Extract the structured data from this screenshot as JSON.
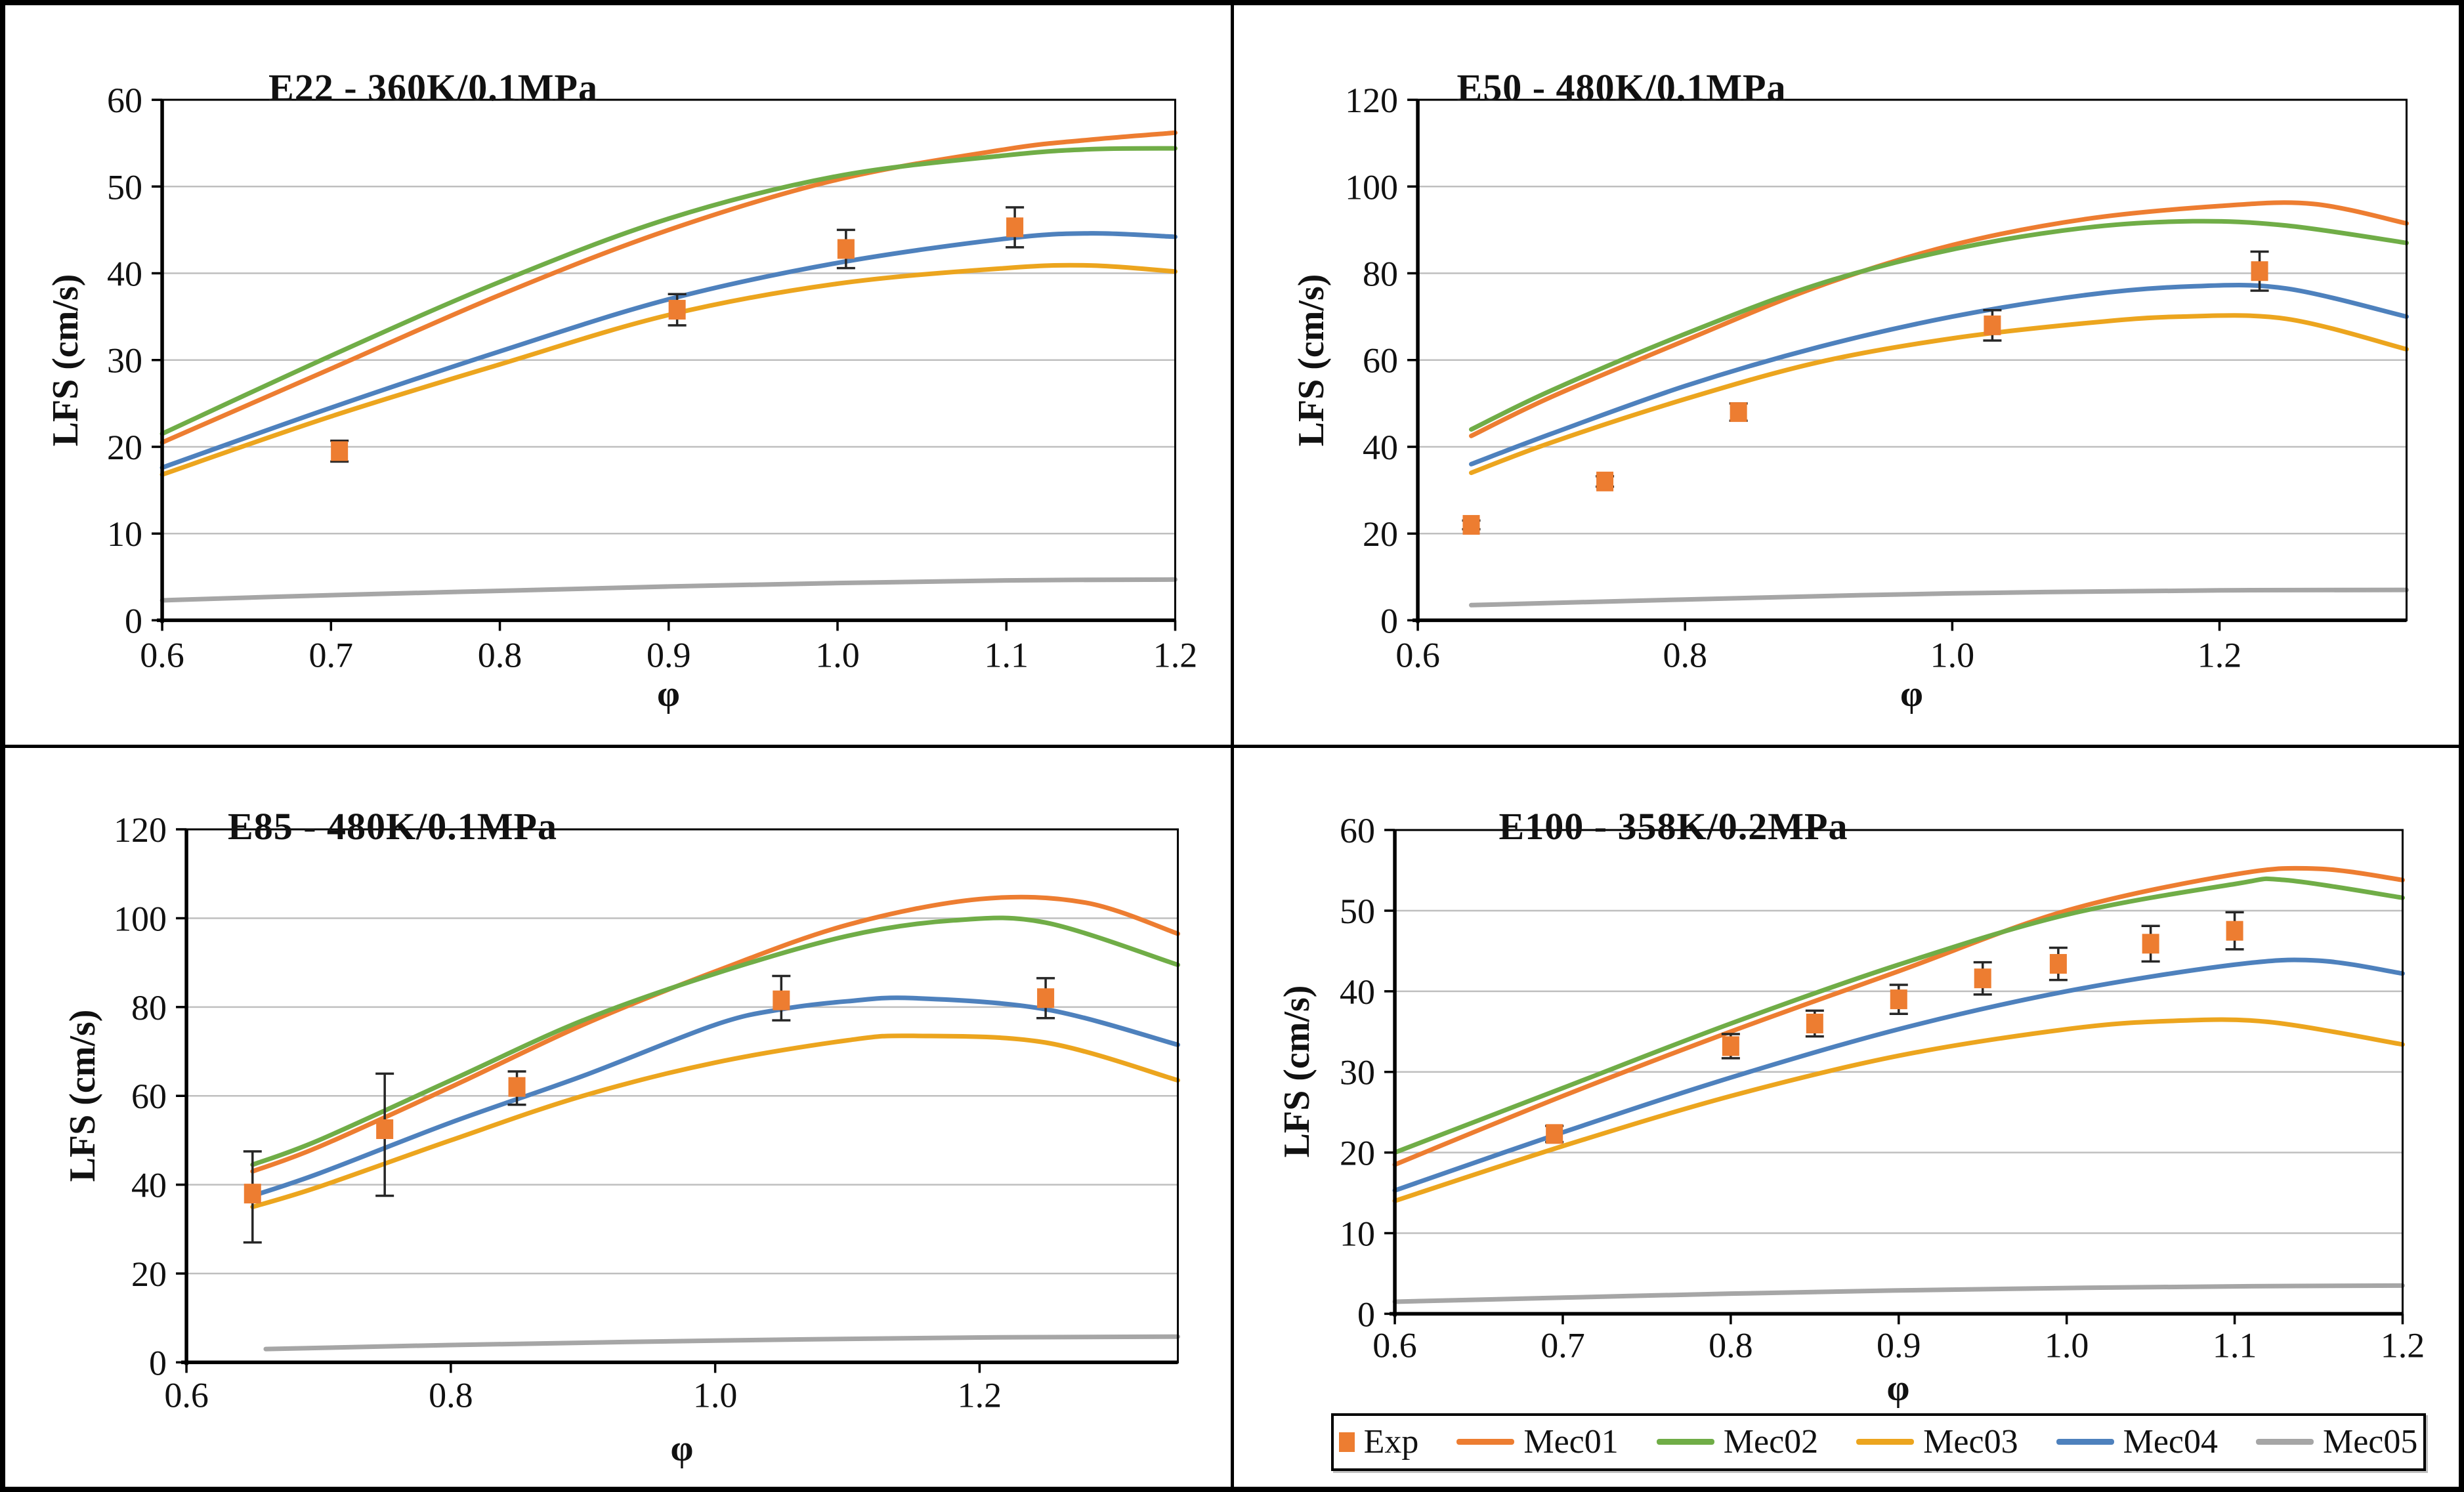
{
  "colors": {
    "exp": "#ED7D31",
    "mec01": "#ED7D31",
    "mec02": "#70AD47",
    "mec03": "#ECA51E",
    "mec04": "#4E81BD",
    "mec05": "#A6A6A6",
    "grid": "#BFBFBF",
    "axis": "#000000",
    "error_bar": "#262626"
  },
  "legend": {
    "items": [
      {
        "label": "Exp",
        "swatch": "square",
        "color": "#ED7D31"
      },
      {
        "label": "Mec01",
        "swatch": "line",
        "color": "#ED7D31"
      },
      {
        "label": "Mec02",
        "swatch": "line",
        "color": "#70AD47"
      },
      {
        "label": "Mec03",
        "swatch": "line",
        "color": "#ECA51E"
      },
      {
        "label": "Mec04",
        "swatch": "line",
        "color": "#4E81BD"
      },
      {
        "label": "Mec05",
        "swatch": "line",
        "color": "#A6A6A6"
      }
    ]
  },
  "chart_data": [
    {
      "type": "line",
      "title": "E22 - 360K/0.1MPa",
      "xlabel": "φ",
      "ylabel": "LFS (cm/s)",
      "xlim": [
        0.6,
        1.2
      ],
      "ylim": [
        0,
        60
      ],
      "xticks": [
        0.6,
        0.7,
        0.8,
        0.9,
        1.0,
        1.1,
        1.2
      ],
      "xtick_labels": [
        "0.6",
        "0.7",
        "0.8",
        "0.9",
        "1.0",
        "1.1",
        "1.2"
      ],
      "yticks": [
        0,
        10,
        20,
        30,
        40,
        50,
        60
      ],
      "grid": "horizontal",
      "exp": {
        "label": "Exp",
        "color": "#ED7D31",
        "x": [
          0.705,
          0.905,
          1.005,
          1.105
        ],
        "y": [
          19.5,
          35.8,
          42.8,
          45.3
        ],
        "err": [
          1.2,
          1.8,
          2.2,
          2.3
        ]
      },
      "series": [
        {
          "name": "Mec01",
          "color": "#ED7D31",
          "points": [
            [
              0.6,
              20.5
            ],
            [
              0.7,
              29
            ],
            [
              0.8,
              37.5
            ],
            [
              0.9,
              45
            ],
            [
              1.0,
              50.8
            ],
            [
              1.1,
              54.3
            ],
            [
              1.15,
              55.4
            ],
            [
              1.2,
              56.2
            ]
          ]
        },
        {
          "name": "Mec02",
          "color": "#70AD47",
          "points": [
            [
              0.6,
              21.5
            ],
            [
              0.7,
              30.5
            ],
            [
              0.8,
              39
            ],
            [
              0.9,
              46.3
            ],
            [
              1.0,
              51.2
            ],
            [
              1.1,
              53.6
            ],
            [
              1.15,
              54.3
            ],
            [
              1.2,
              54.4
            ]
          ]
        },
        {
          "name": "Mec03",
          "color": "#ECA51E",
          "points": [
            [
              0.6,
              16.8
            ],
            [
              0.7,
              23.5
            ],
            [
              0.8,
              29.5
            ],
            [
              0.9,
              35.2
            ],
            [
              1.0,
              38.8
            ],
            [
              1.1,
              40.6
            ],
            [
              1.15,
              40.9
            ],
            [
              1.2,
              40.2
            ]
          ]
        },
        {
          "name": "Mec04",
          "color": "#4E81BD",
          "points": [
            [
              0.6,
              17.6
            ],
            [
              0.7,
              24.5
            ],
            [
              0.8,
              31
            ],
            [
              0.9,
              37
            ],
            [
              1.0,
              41.2
            ],
            [
              1.1,
              44
            ],
            [
              1.15,
              44.6
            ],
            [
              1.2,
              44.2
            ]
          ]
        },
        {
          "name": "Mec05",
          "color": "#A6A6A6",
          "points": [
            [
              0.6,
              2.3
            ],
            [
              0.7,
              2.9
            ],
            [
              0.8,
              3.4
            ],
            [
              0.9,
              3.9
            ],
            [
              1.0,
              4.3
            ],
            [
              1.1,
              4.6
            ],
            [
              1.2,
              4.7
            ]
          ]
        }
      ]
    },
    {
      "type": "line",
      "title": "E50 - 480K/0.1MPa",
      "xlabel": "φ",
      "ylabel": "LFS (cm/s)",
      "xlim": [
        0.6,
        1.34
      ],
      "ylim": [
        0,
        120
      ],
      "xticks": [
        0.6,
        0.8,
        1.0,
        1.2
      ],
      "xtick_labels": [
        "0.6",
        "0.8",
        "1.0",
        "1.2"
      ],
      "yticks": [
        0,
        20,
        40,
        60,
        80,
        100,
        120
      ],
      "grid": "horizontal",
      "exp": {
        "label": "Exp",
        "color": "#ED7D31",
        "x": [
          0.64,
          0.74,
          0.84,
          1.03,
          1.23
        ],
        "y": [
          22,
          32,
          48,
          68,
          80.5
        ],
        "err": [
          1,
          1.2,
          2,
          3.5,
          4.5
        ]
      },
      "series": [
        {
          "name": "Mec01",
          "color": "#ED7D31",
          "points": [
            [
              0.64,
              42.5
            ],
            [
              0.7,
              51.5
            ],
            [
              0.8,
              64.5
            ],
            [
              0.9,
              77
            ],
            [
              1.0,
              86.5
            ],
            [
              1.1,
              92.5
            ],
            [
              1.2,
              95.5
            ],
            [
              1.27,
              96
            ],
            [
              1.34,
              91.5
            ]
          ]
        },
        {
          "name": "Mec02",
          "color": "#70AD47",
          "points": [
            [
              0.64,
              44
            ],
            [
              0.7,
              53
            ],
            [
              0.8,
              66
            ],
            [
              0.9,
              77.5
            ],
            [
              1.0,
              85.5
            ],
            [
              1.1,
              90.5
            ],
            [
              1.18,
              92
            ],
            [
              1.25,
              91
            ],
            [
              1.34,
              87
            ]
          ]
        },
        {
          "name": "Mec03",
          "color": "#ECA51E",
          "points": [
            [
              0.64,
              34
            ],
            [
              0.7,
              41
            ],
            [
              0.8,
              51
            ],
            [
              0.9,
              59.5
            ],
            [
              1.0,
              65
            ],
            [
              1.1,
              68.5
            ],
            [
              1.17,
              70
            ],
            [
              1.25,
              69.5
            ],
            [
              1.34,
              62.5
            ]
          ]
        },
        {
          "name": "Mec04",
          "color": "#4E81BD",
          "points": [
            [
              0.64,
              36
            ],
            [
              0.7,
              43
            ],
            [
              0.8,
              54
            ],
            [
              0.9,
              63
            ],
            [
              1.0,
              70
            ],
            [
              1.1,
              75
            ],
            [
              1.18,
              77
            ],
            [
              1.25,
              76.5
            ],
            [
              1.34,
              70
            ]
          ]
        },
        {
          "name": "Mec05",
          "color": "#A6A6A6",
          "points": [
            [
              0.64,
              3.5
            ],
            [
              0.8,
              4.8
            ],
            [
              1.0,
              6.2
            ],
            [
              1.2,
              6.9
            ],
            [
              1.34,
              7
            ]
          ]
        }
      ]
    },
    {
      "type": "line",
      "title": "E85 - 480K/0.1MPa",
      "xlabel": "φ",
      "ylabel": "LFS (cm/s)",
      "xlim": [
        0.6,
        1.35
      ],
      "ylim": [
        0,
        120
      ],
      "xticks": [
        0.6,
        0.8,
        1.0,
        1.2
      ],
      "xtick_labels": [
        "0.6",
        "0.8",
        "1.0",
        "1.2"
      ],
      "yticks": [
        0,
        20,
        40,
        60,
        80,
        100,
        120
      ],
      "grid": "horizontal",
      "exp": {
        "label": "Exp",
        "color": "#ED7D31",
        "x": [
          0.65,
          0.75,
          0.85,
          1.05,
          1.25
        ],
        "y": [
          38,
          52.5,
          62,
          81.5,
          82
        ],
        "err": [
          [
            11,
            9.5
          ],
          [
            15,
            12.5
          ],
          [
            4,
            3.5
          ],
          [
            4.5,
            5.5
          ],
          [
            4.5,
            4.5
          ]
        ]
      },
      "series": [
        {
          "name": "Mec01",
          "color": "#ED7D31",
          "points": [
            [
              0.65,
              43
            ],
            [
              0.7,
              48.5
            ],
            [
              0.8,
              62
            ],
            [
              0.9,
              76
            ],
            [
              1.0,
              88
            ],
            [
              1.1,
              98.5
            ],
            [
              1.2,
              104.3
            ],
            [
              1.28,
              103.5
            ],
            [
              1.35,
              96.5
            ]
          ]
        },
        {
          "name": "Mec02",
          "color": "#70AD47",
          "points": [
            [
              0.65,
              44.5
            ],
            [
              0.7,
              50
            ],
            [
              0.8,
              63.5
            ],
            [
              0.9,
              77
            ],
            [
              1.0,
              87.5
            ],
            [
              1.1,
              96
            ],
            [
              1.18,
              99.5
            ],
            [
              1.25,
              99
            ],
            [
              1.35,
              89.5
            ]
          ]
        },
        {
          "name": "Mec03",
          "color": "#ECA51E",
          "points": [
            [
              0.65,
              35
            ],
            [
              0.7,
              39.5
            ],
            [
              0.8,
              50
            ],
            [
              0.9,
              60
            ],
            [
              1.0,
              67.5
            ],
            [
              1.1,
              72.5
            ],
            [
              1.15,
              73.5
            ],
            [
              1.25,
              72
            ],
            [
              1.35,
              63.5
            ]
          ]
        },
        {
          "name": "Mec04",
          "color": "#4E81BD",
          "points": [
            [
              0.65,
              37.5
            ],
            [
              0.7,
              42.5
            ],
            [
              0.8,
              54
            ],
            [
              0.9,
              64.5
            ],
            [
              1.0,
              76
            ],
            [
              1.05,
              79.5
            ],
            [
              1.1,
              81.3
            ],
            [
              1.15,
              82
            ],
            [
              1.25,
              79.5
            ],
            [
              1.35,
              71.5
            ]
          ]
        },
        {
          "name": "Mec05",
          "color": "#A6A6A6",
          "points": [
            [
              0.66,
              3
            ],
            [
              0.8,
              3.9
            ],
            [
              1.0,
              4.9
            ],
            [
              1.2,
              5.6
            ],
            [
              1.35,
              5.8
            ]
          ]
        }
      ]
    },
    {
      "type": "line",
      "title": "E100 - 358K/0.2MPa",
      "xlabel": "φ",
      "ylabel": "LFS (cm/s)",
      "xlim": [
        0.6,
        1.2
      ],
      "ylim": [
        0,
        60
      ],
      "xticks": [
        0.6,
        0.7,
        0.8,
        0.9,
        1.0,
        1.1,
        1.2
      ],
      "xtick_labels": [
        "0.6",
        "0.7",
        "0.8",
        "0.9",
        "1.0",
        "1.1",
        "1.2"
      ],
      "yticks": [
        0,
        10,
        20,
        30,
        40,
        50,
        60
      ],
      "grid": "horizontal",
      "exp": {
        "label": "Exp",
        "color": "#ED7D31",
        "x": [
          0.695,
          0.8,
          0.85,
          0.9,
          0.95,
          0.995,
          1.05,
          1.1
        ],
        "y": [
          22.3,
          33.2,
          36,
          39,
          41.6,
          43.4,
          45.9,
          47.5
        ],
        "err": [
          1,
          1.5,
          1.6,
          1.8,
          2,
          2,
          2.2,
          2.3
        ]
      },
      "series": [
        {
          "name": "Mec01",
          "color": "#ED7D31",
          "points": [
            [
              0.6,
              18.5
            ],
            [
              0.7,
              27
            ],
            [
              0.8,
              35
            ],
            [
              0.9,
              42.5
            ],
            [
              1.0,
              50
            ],
            [
              1.1,
              54.5
            ],
            [
              1.15,
              55.2
            ],
            [
              1.2,
              53.8
            ]
          ]
        },
        {
          "name": "Mec02",
          "color": "#70AD47",
          "points": [
            [
              0.6,
              20
            ],
            [
              0.7,
              28
            ],
            [
              0.8,
              36
            ],
            [
              0.9,
              43.3
            ],
            [
              1.0,
              49.5
            ],
            [
              1.1,
              53.3
            ],
            [
              1.13,
              53.8
            ],
            [
              1.2,
              51.6
            ]
          ]
        },
        {
          "name": "Mec03",
          "color": "#ECA51E",
          "points": [
            [
              0.6,
              14
            ],
            [
              0.7,
              20.8
            ],
            [
              0.8,
              27
            ],
            [
              0.9,
              32
            ],
            [
              1.0,
              35.3
            ],
            [
              1.06,
              36.3
            ],
            [
              1.12,
              36.2
            ],
            [
              1.2,
              33.4
            ]
          ]
        },
        {
          "name": "Mec04",
          "color": "#4E81BD",
          "points": [
            [
              0.6,
              15.3
            ],
            [
              0.7,
              22.5
            ],
            [
              0.8,
              29.3
            ],
            [
              0.9,
              35.3
            ],
            [
              1.0,
              40
            ],
            [
              1.1,
              43.3
            ],
            [
              1.15,
              43.8
            ],
            [
              1.2,
              42.2
            ]
          ]
        },
        {
          "name": "Mec05",
          "color": "#A6A6A6",
          "points": [
            [
              0.6,
              1.5
            ],
            [
              0.7,
              2
            ],
            [
              0.8,
              2.5
            ],
            [
              0.9,
              2.9
            ],
            [
              1.0,
              3.2
            ],
            [
              1.1,
              3.4
            ],
            [
              1.2,
              3.5
            ]
          ]
        }
      ]
    }
  ]
}
